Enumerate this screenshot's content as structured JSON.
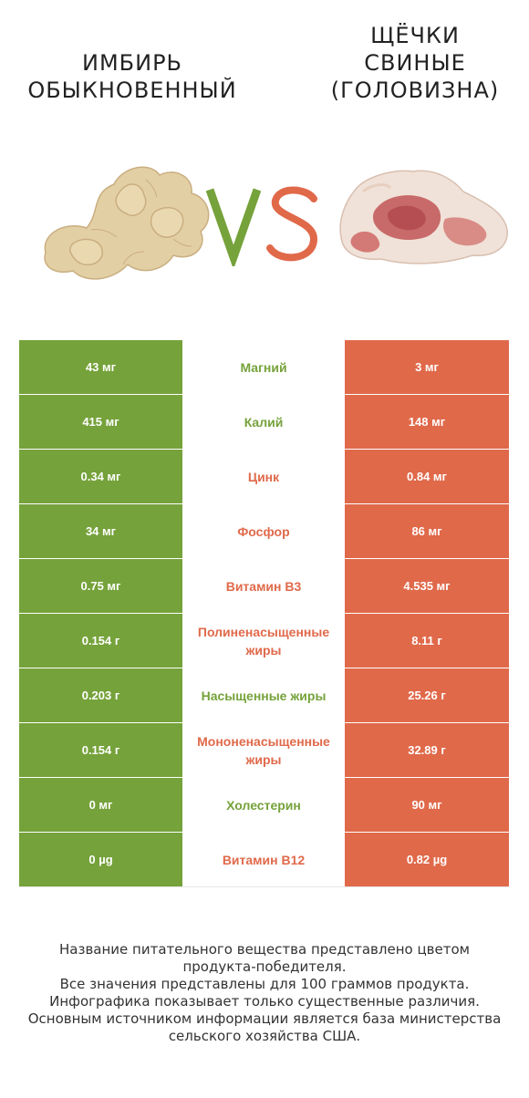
{
  "header": {
    "left_title": [
      "ИМБИРЬ",
      "ОБЫКНОВЕННЫЙ"
    ],
    "right_title": [
      "ЩЁЧКИ",
      "СВИНЫЕ",
      "(ГОЛОВИЗНА)"
    ],
    "vs_colors": {
      "v": "#75a23a",
      "s": "#e0694a"
    }
  },
  "colors": {
    "left": "#75a23a",
    "right": "#e0694a"
  },
  "rows": [
    {
      "left": "43 мг",
      "nutrient": "Магний",
      "winner": "green",
      "right": "3 мг"
    },
    {
      "left": "415 мг",
      "nutrient": "Калий",
      "winner": "green",
      "right": "148 мг"
    },
    {
      "left": "0.34 мг",
      "nutrient": "Цинк",
      "winner": "red",
      "right": "0.84 мг"
    },
    {
      "left": "34 мг",
      "nutrient": "Фосфор",
      "winner": "red",
      "right": "86 мг"
    },
    {
      "left": "0.75 мг",
      "nutrient": "Витамин B3",
      "winner": "red",
      "right": "4.535 мг"
    },
    {
      "left": "0.154 г",
      "nutrient": "Полиненасыщенные жиры",
      "winner": "red",
      "right": "8.11 г"
    },
    {
      "left": "0.203 г",
      "nutrient": "Насыщенные жиры",
      "winner": "green",
      "right": "25.26 г"
    },
    {
      "left": "0.154 г",
      "nutrient": "Мононенасыщенные жиры",
      "winner": "red",
      "right": "32.89 г"
    },
    {
      "left": "0 мг",
      "nutrient": "Холестерин",
      "winner": "green",
      "right": "90 мг"
    },
    {
      "left": "0 µg",
      "nutrient": "Витамин B12",
      "winner": "red",
      "right": "0.82 µg"
    }
  ],
  "footer": [
    "Название питательного вещества представлено цветом",
    "продукта-победителя.",
    "Все значения представлены для 100 граммов продукта.",
    "Инфографика показывает только существенные различия.",
    "Основным источником информации является база министерства",
    "сельского хозяйства США."
  ]
}
